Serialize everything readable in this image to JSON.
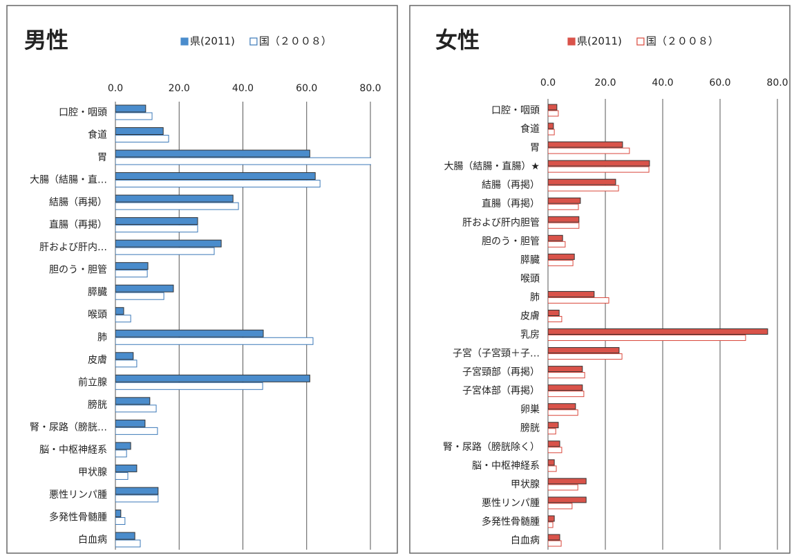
{
  "chart_data": [
    {
      "type": "barh",
      "title": "男性",
      "categories": [
        "口腔・咽頭",
        "食道",
        "胃",
        "大腸（結腸・直…",
        "結腸（再掲）",
        "直腸（再掲）",
        "肝および肝内…",
        "胆のう・胆管",
        "膵臓",
        "喉頭",
        "肺",
        "皮膚",
        "前立腺",
        "膀胱",
        "腎・尿路（膀胱…",
        "脳・中枢神経系",
        "甲状腺",
        "悪性リンパ腫",
        "多発性骨髄腫",
        "白血病"
      ],
      "series": [
        {
          "name": "県(2011)",
          "color": "#4a8ccc",
          "values": [
            9.5,
            15.0,
            61.0,
            62.7,
            36.9,
            25.8,
            33.2,
            10.2,
            18.2,
            2.6,
            46.4,
            5.6,
            61.0,
            10.8,
            9.3,
            4.8,
            6.7,
            13.4,
            1.7,
            6.1
          ]
        },
        {
          "name": "国（２００８）",
          "color": "#3a78b8",
          "values": [
            11.5,
            16.7,
            82,
            64.2,
            38.6,
            25.8,
            31.0,
            10.0,
            15.2,
            4.8,
            62.0,
            6.7,
            46.2,
            12.8,
            13.2,
            3.5,
            3.9,
            13.4,
            3.0,
            7.8
          ]
        }
      ],
      "xlim": [
        0,
        80
      ],
      "xticks": [
        {
          "value": 0,
          "label": "0.0"
        },
        {
          "value": 20,
          "label": "20.0"
        },
        {
          "value": 40,
          "label": "40.0"
        },
        {
          "value": 60,
          "label": "60.0"
        },
        {
          "value": 80,
          "label": "80.0"
        }
      ],
      "grid": true,
      "legend": "top-right"
    },
    {
      "type": "barh",
      "title": "女性",
      "categories": [
        "口腔・咽頭",
        "食道",
        "胃",
        "大腸（結腸・直腸）★",
        "結腸（再掲）",
        "直腸（再掲）",
        "肝および肝内胆管",
        "胆のう・胆管",
        "膵臓",
        "喉頭",
        "肺",
        "皮膚",
        "乳房",
        "子宮（子宮頸＋子…",
        "子宮頸部（再掲）",
        "子宮体部（再掲）",
        "卵巣",
        "膀胱",
        "腎・尿路（膀胱除く）",
        "脳・中枢神経系",
        "甲状腺",
        "悪性リンパ腫",
        "多発性骨髄腫",
        "白血病"
      ],
      "series": [
        {
          "name": "県(2011)",
          "color": "#d9534a",
          "values": [
            3.1,
            1.9,
            26.0,
            35.4,
            23.6,
            11.3,
            10.8,
            5.1,
            9.2,
            0,
            16.1,
            3.9,
            76.6,
            24.8,
            12.0,
            12.0,
            9.6,
            3.6,
            4.1,
            2.2,
            13.3,
            13.3,
            2.2,
            4.1
          ]
        },
        {
          "name": "国（２００８）",
          "color": "#d9463a",
          "values": [
            3.6,
            2.2,
            28.4,
            35.2,
            24.6,
            10.6,
            10.8,
            6.0,
            8.7,
            0,
            21.2,
            4.8,
            68.9,
            25.8,
            12.8,
            12.5,
            10.4,
            2.7,
            4.8,
            2.9,
            10.4,
            8.4,
            1.7,
            4.6
          ]
        }
      ],
      "xlim": [
        0,
        80
      ],
      "xticks": [
        {
          "value": 0,
          "label": "0.0"
        },
        {
          "value": 20,
          "label": "20.0"
        },
        {
          "value": 40,
          "label": "40.0"
        },
        {
          "value": 60,
          "label": "60.0"
        },
        {
          "value": 80,
          "label": "80.0"
        }
      ],
      "grid": true,
      "legend": "top-right"
    }
  ]
}
